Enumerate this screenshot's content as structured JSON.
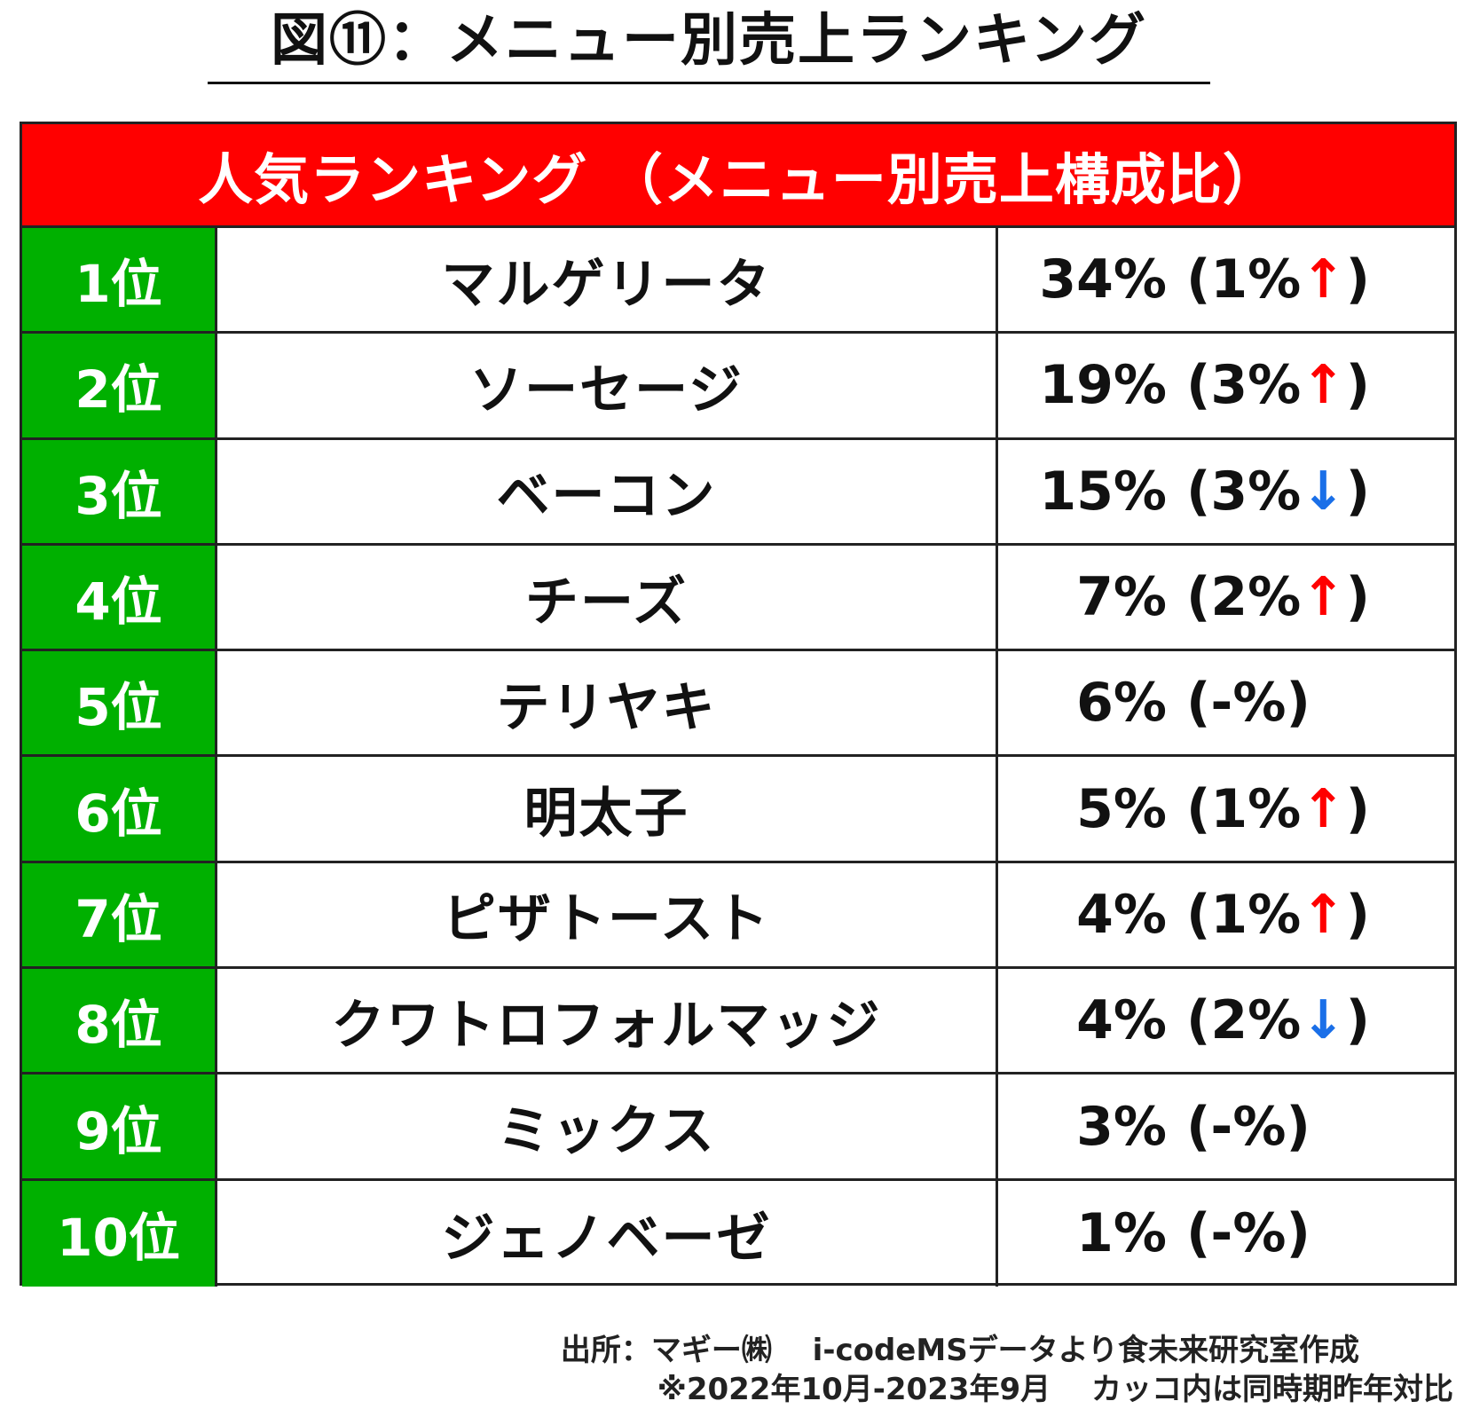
{
  "title": "図⑪：メニュー別売上ランキング",
  "table": {
    "header": "人気ランキング （メニュー別売上構成比）",
    "rows": [
      {
        "rank": "1位",
        "name": "マルゲリータ",
        "share": "34%",
        "change": "(1%",
        "arrow": "↑",
        "direction": "up",
        "close": ")"
      },
      {
        "rank": "2位",
        "name": "ソーセージ",
        "share": "19%",
        "change": "(3%",
        "arrow": "↑",
        "direction": "up",
        "close": ")"
      },
      {
        "rank": "3位",
        "name": "ベーコン",
        "share": "15%",
        "change": "(3%",
        "arrow": "↓",
        "direction": "down",
        "close": ")"
      },
      {
        "rank": "4位",
        "name": "チーズ",
        "share": "7%",
        "change": "(2%",
        "arrow": "↑",
        "direction": "up",
        "close": ")"
      },
      {
        "rank": "5位",
        "name": "テリヤキ",
        "share": "6%",
        "change": "(-%)",
        "arrow": "",
        "direction": "none",
        "close": ""
      },
      {
        "rank": "6位",
        "name": "明太子",
        "share": "5%",
        "change": "(1%",
        "arrow": "↑",
        "direction": "up",
        "close": ")"
      },
      {
        "rank": "7位",
        "name": "ピザトースト",
        "share": "4%",
        "change": "(1%",
        "arrow": "↑",
        "direction": "up",
        "close": ")"
      },
      {
        "rank": "8位",
        "name": "クワトロフォルマッジ",
        "share": "4%",
        "change": "(2%",
        "arrow": "↓",
        "direction": "down",
        "close": ")"
      },
      {
        "rank": "9位",
        "name": "ミックス",
        "share": "3%",
        "change": "(-%)",
        "arrow": "",
        "direction": "none",
        "close": ""
      },
      {
        "rank": "10位",
        "name": "ジェノベーゼ",
        "share": "1%",
        "change": "(-%)",
        "arrow": "",
        "direction": "none",
        "close": ""
      }
    ]
  },
  "footer": {
    "source": "出所：マギー㈱　 i-codeMSデータより食未来研究室作成",
    "note": "※2022年10月-2023年9月　 カッコ内は同時期昨年対比"
  },
  "colors": {
    "header_bg": "#ff0000",
    "rank_bg": "#00b000",
    "arrow_up": "#ff0000",
    "arrow_down": "#1a6fe8"
  }
}
